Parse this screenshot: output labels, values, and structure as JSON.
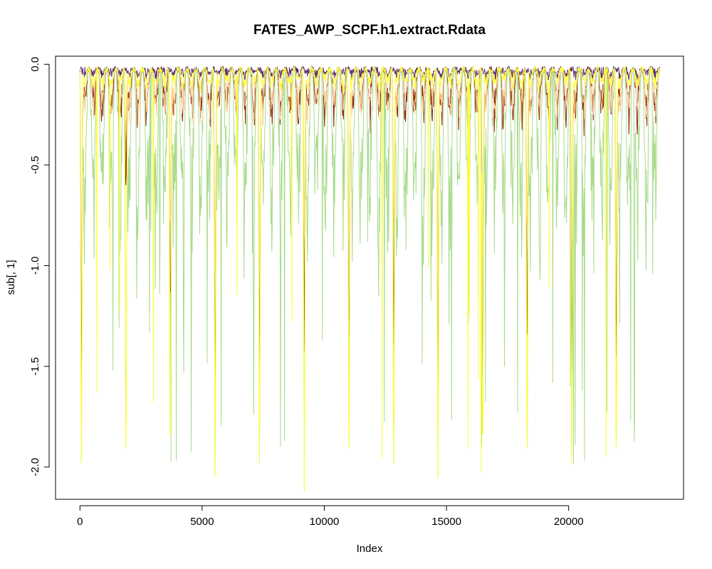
{
  "chart_data": {
    "type": "line",
    "title": "FATES_AWP_SCPF.h1.extract.Rdata",
    "xlabel": "Index",
    "ylabel": "sub[, 1]",
    "xlim": [
      -1000,
      24700
    ],
    "ylim": [
      -2.16,
      0.04
    ],
    "x_ticks": [
      0,
      5000,
      10000,
      15000,
      20000
    ],
    "x_tick_labels": [
      "0",
      "5000",
      "10000",
      "15000",
      "20000"
    ],
    "y_ticks": [
      0.0,
      -0.5,
      -1.0,
      -1.5,
      -2.0
    ],
    "y_tick_labels": [
      "0.0",
      "-0.5",
      "-1.0",
      "-1.5",
      "-2.0"
    ],
    "grid": false,
    "x_range": [
      1,
      23725
    ],
    "seasonal_period": 365,
    "deep_events": [
      {
        "x": 60,
        "depth": -1.75
      },
      {
        "x": 1880,
        "depth": -0.68
      },
      {
        "x": 3700,
        "depth": -1.52
      },
      {
        "x": 5530,
        "depth": -1.8
      },
      {
        "x": 7350,
        "depth": -1.87
      },
      {
        "x": 9180,
        "depth": -1.45
      },
      {
        "x": 11010,
        "depth": -1.65
      },
      {
        "x": 12840,
        "depth": -1.52
      },
      {
        "x": 14650,
        "depth": -1.85
      },
      {
        "x": 16480,
        "depth": -1.97
      },
      {
        "x": 18300,
        "depth": -1.52
      },
      {
        "x": 20130,
        "depth": -1.66
      },
      {
        "x": 21950,
        "depth": -1.65
      }
    ],
    "series": [
      {
        "color": "#5B2C6F",
        "typical_dip": -0.05,
        "deep_dip": -2.16
      },
      {
        "color": "#8B2500",
        "typical_dip": -0.35,
        "deep_dip": -1.8
      },
      {
        "color": "#FFCC99",
        "typical_dip": -0.32,
        "deep_dip": -1.1
      },
      {
        "color": "#A8DC8C",
        "typical_dip": -1.2,
        "deep_dip": -2.16
      },
      {
        "color": "#FFFF33",
        "typical_dip": -0.12,
        "deep_dip": -2.16
      }
    ]
  }
}
